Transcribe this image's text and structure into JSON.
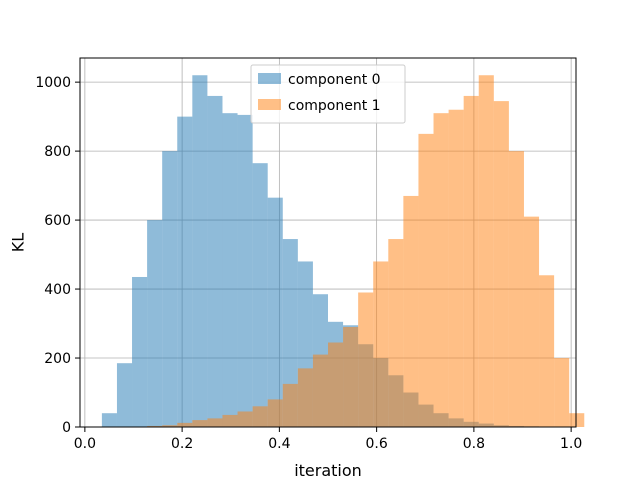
{
  "chart_data": {
    "type": "bar",
    "title": "",
    "xlabel": "iteration",
    "ylabel": "KL",
    "xlim": [
      -0.01,
      1.01
    ],
    "ylim": [
      0,
      1070
    ],
    "xticks": [
      0.0,
      0.2,
      0.4,
      0.6,
      0.8,
      1.0
    ],
    "xtick_labels": [
      "0.0",
      "0.2",
      "0.4",
      "0.6",
      "0.8",
      "1.0"
    ],
    "yticks": [
      0,
      200,
      400,
      600,
      800,
      1000
    ],
    "ytick_labels": [
      "0",
      "200",
      "400",
      "600",
      "800",
      "1000"
    ],
    "grid": true,
    "legend_position": "top-center",
    "series": [
      {
        "name": "component 0",
        "color": "#1f77b4",
        "opacity": 0.5,
        "bin_start": 0.035,
        "bin_width": 0.031,
        "values": [
          40,
          185,
          435,
          600,
          800,
          900,
          1020,
          960,
          910,
          905,
          765,
          665,
          545,
          480,
          385,
          305,
          295,
          240,
          200,
          150,
          100,
          65,
          40,
          25,
          15,
          10,
          5,
          3,
          2,
          1
        ]
      },
      {
        "name": "component 1",
        "color": "#ff7f0e",
        "opacity": 0.5,
        "bin_start": 0.035,
        "bin_width": 0.031,
        "values": [
          0,
          0,
          1,
          3,
          5,
          12,
          20,
          25,
          35,
          45,
          60,
          80,
          125,
          170,
          210,
          245,
          290,
          390,
          480,
          545,
          670,
          850,
          910,
          920,
          960,
          1020,
          945,
          800,
          610,
          440,
          200,
          40
        ]
      }
    ]
  }
}
